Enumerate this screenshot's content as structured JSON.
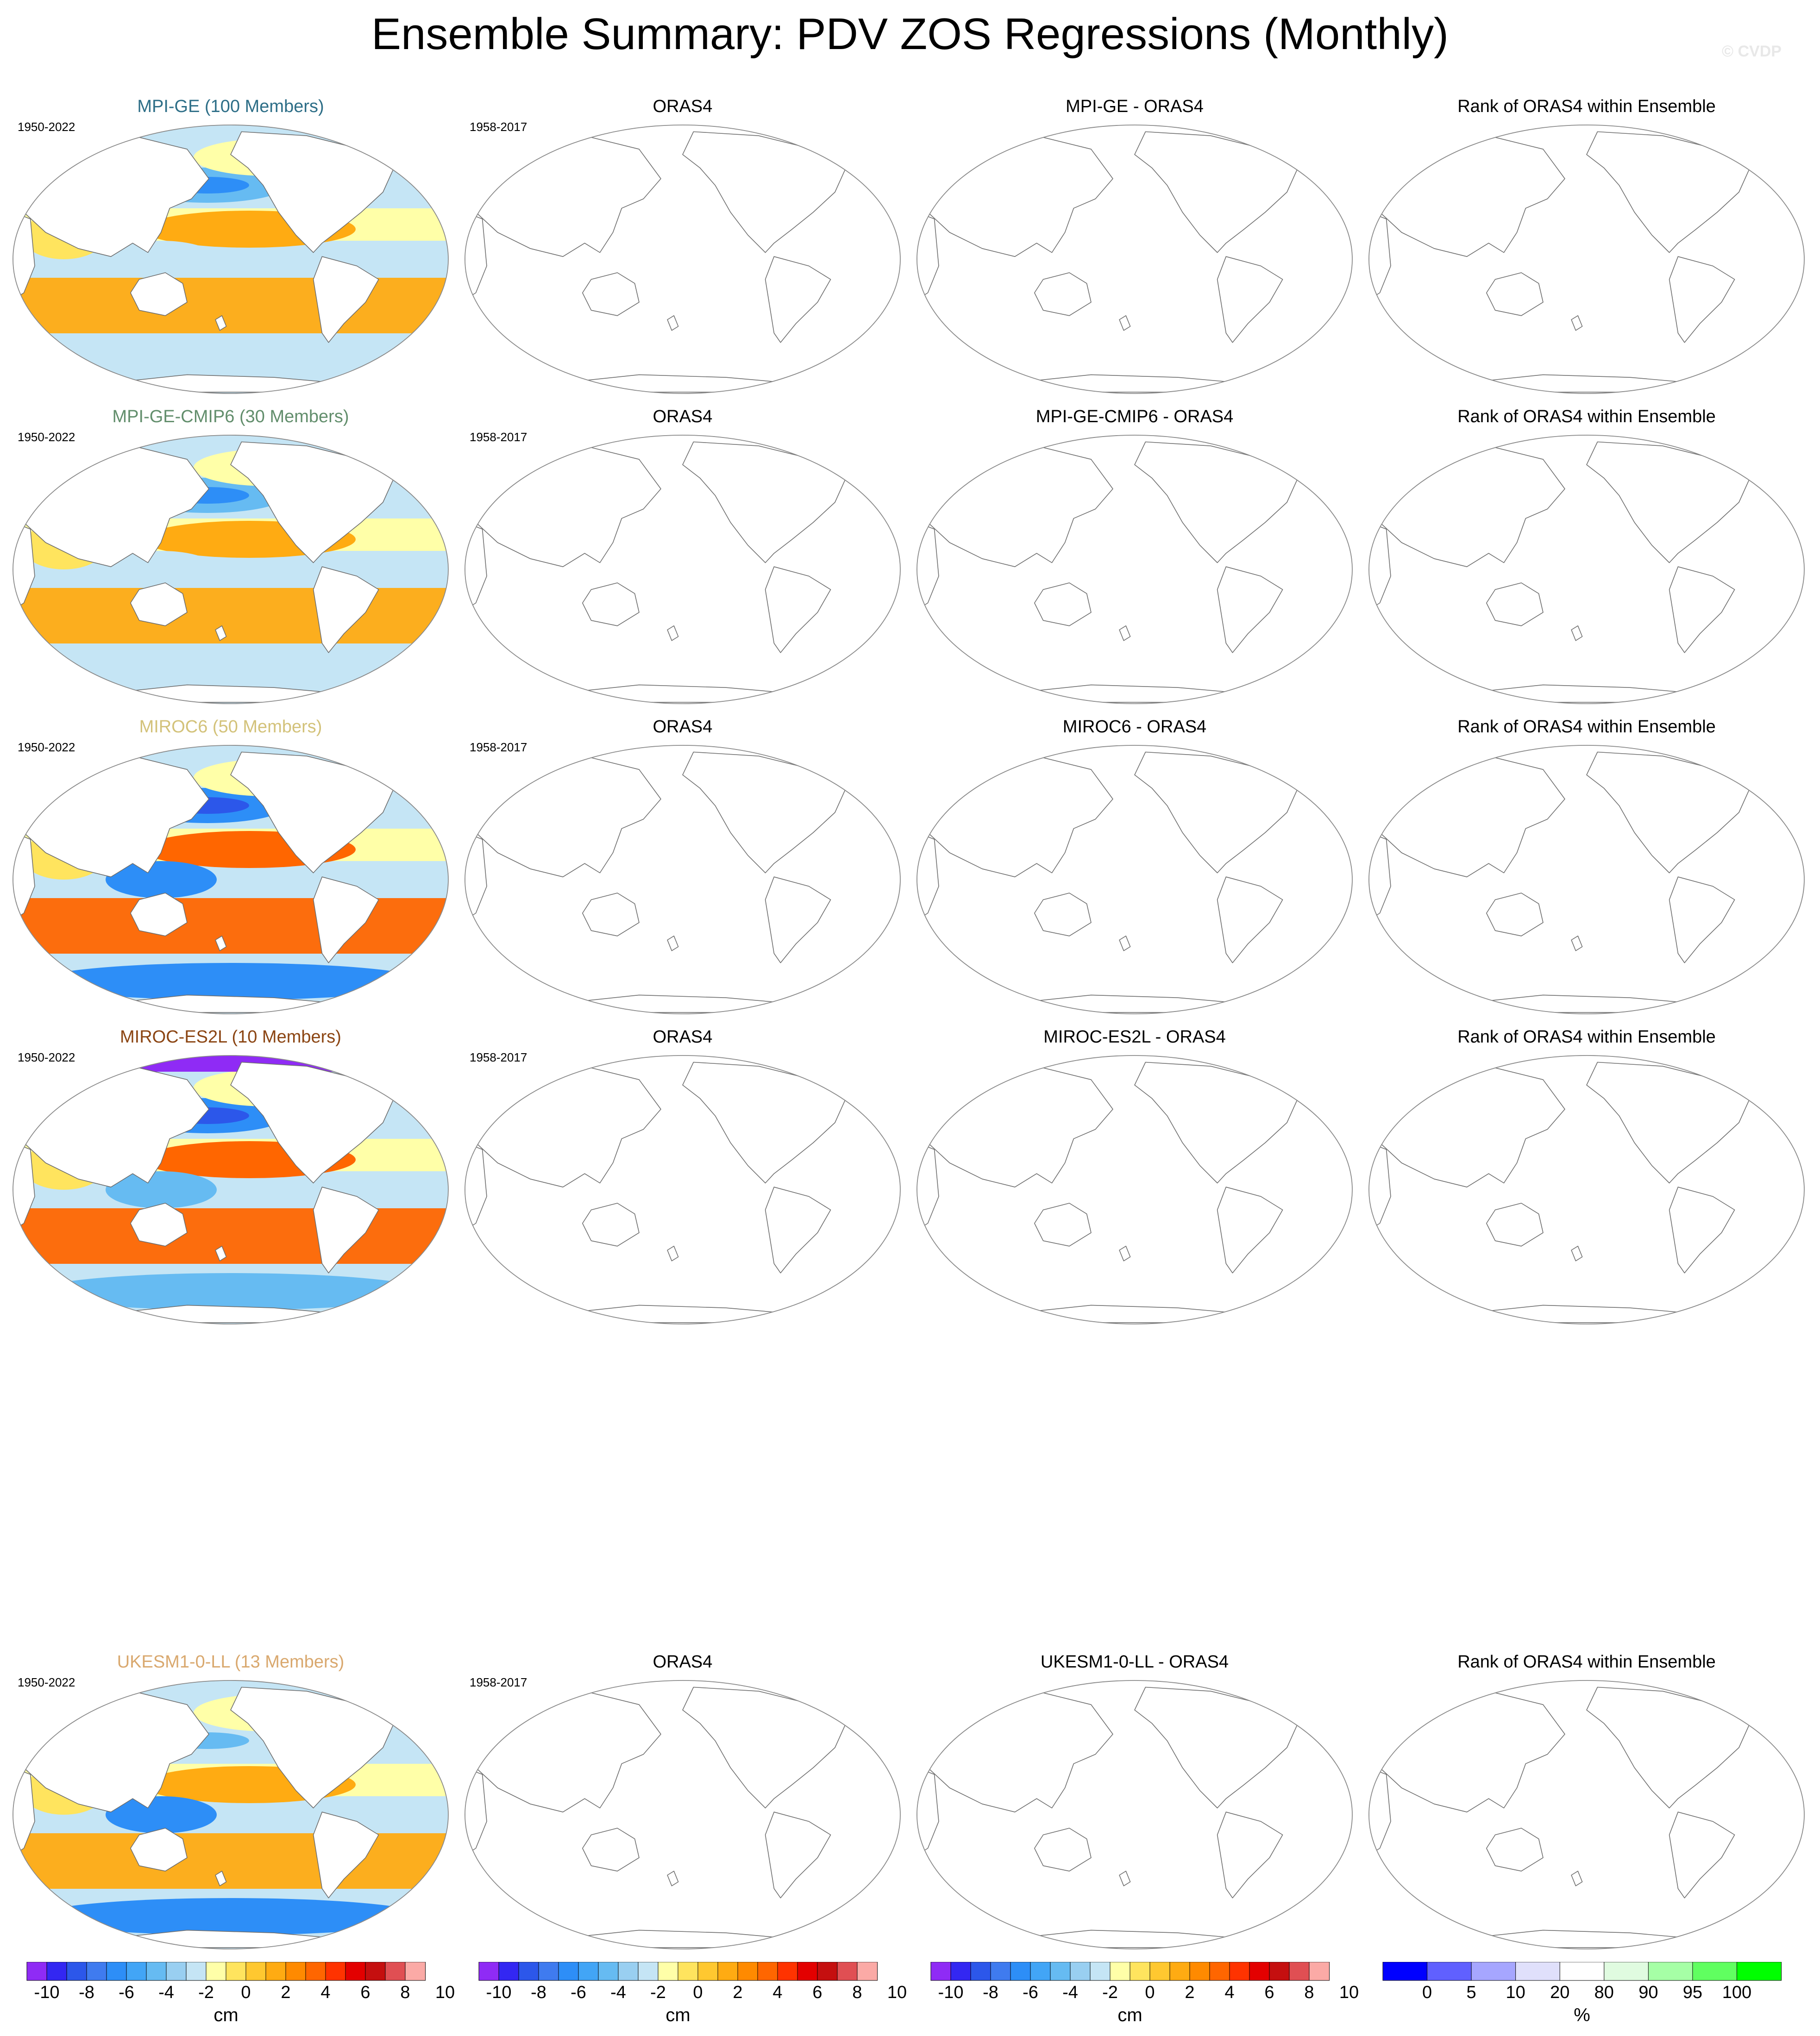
{
  "title": "Ensemble Summary: PDV ZOS Regressions (Monthly)",
  "watermark": "© CVDP",
  "columns_common": {
    "obs_title": "ORAS4",
    "rank_title": "Rank of ORAS4 within Ensemble",
    "obs_years": "1958-2017"
  },
  "rows": [
    {
      "ensemble_title": "MPI-GE (100 Members)",
      "ensemble_color": "#2d6e87",
      "years": "1950-2022",
      "diff_title": "MPI-GE - ORAS4",
      "pattern": {
        "north_pacific_low": -4,
        "tropical_high": 2,
        "southern_low": -2,
        "strong_north_band": false
      }
    },
    {
      "ensemble_title": "MPI-GE-CMIP6 (30 Members)",
      "ensemble_color": "#628e6c",
      "years": "1950-2022",
      "diff_title": "MPI-GE-CMIP6 - ORAS4",
      "pattern": {
        "north_pacific_low": -4,
        "tropical_high": 2,
        "southern_low": -2,
        "strong_north_band": false
      }
    },
    {
      "ensemble_title": "MIROC6 (50 Members)",
      "ensemble_color": "#d3c27a",
      "years": "1950-2022",
      "diff_title": "MIROC6 - ORAS4",
      "pattern": {
        "north_pacific_low": -6,
        "tropical_high": 4,
        "southern_low": -6,
        "strong_north_band": false
      }
    },
    {
      "ensemble_title": "MIROC-ES2L (10 Members)",
      "ensemble_color": "#8b4513",
      "years": "1950-2022",
      "diff_title": "MIROC-ES2L - ORAS4",
      "pattern": {
        "north_pacific_low": -6,
        "tropical_high": 4,
        "southern_low": -4,
        "strong_north_band": true
      }
    },
    {
      "ensemble_title": "UKESM1-0-LL (13 Members)",
      "ensemble_color": "#d9a86e",
      "years": "1950-2022",
      "diff_title": "UKESM1-0-LL - ORAS4",
      "pattern": {
        "north_pacific_low": -2,
        "tropical_high": 2,
        "southern_low": -6,
        "strong_north_band": false
      }
    }
  ],
  "colorbars": {
    "zos": {
      "unit": "cm",
      "tick_labels": [
        "-10",
        "-8",
        "-6",
        "-4",
        "-2",
        "0",
        "2",
        "4",
        "6",
        "8",
        "10"
      ],
      "colors": [
        "#8f2bf5",
        "#3327f2",
        "#2c57ea",
        "#3f7bef",
        "#2d8ef7",
        "#42a5f6",
        "#66bbf2",
        "#99cff1",
        "#c5e5f5",
        "#ffffa8",
        "#ffe45e",
        "#ffc830",
        "#ffab12",
        "#ff8a00",
        "#ff6600",
        "#ff3300",
        "#e30000",
        "#c50f0f",
        "#e04f53",
        "#fbaaa6"
      ]
    },
    "rank": {
      "unit": "%",
      "tick_labels": [
        "0",
        "5",
        "10",
        "20",
        "80",
        "90",
        "95",
        "100"
      ],
      "colors": [
        "#0000ff",
        "#6060ff",
        "#a6a6ff",
        "#e0e0fb",
        "#ffffff",
        "#e0fbe0",
        "#a6ffa6",
        "#60ff60",
        "#00ff00"
      ]
    }
  }
}
